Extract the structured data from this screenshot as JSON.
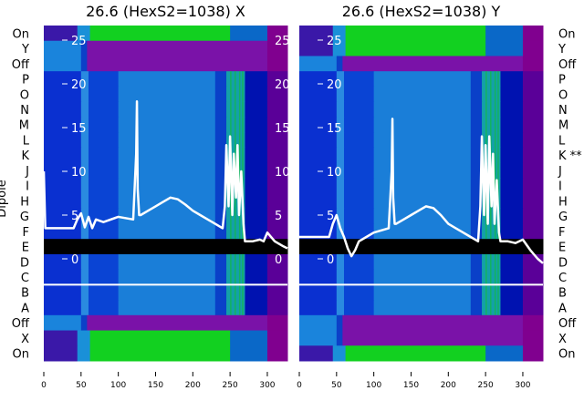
{
  "chart_data": [
    {
      "type": "heatmap",
      "title": "26.6 (HexS2=1038) X",
      "ylabel": "Dipole",
      "row_labels": [
        "On",
        "Y",
        "Off",
        "P",
        "O",
        "N",
        "M",
        "L",
        "K",
        "J",
        "I",
        "H",
        "G",
        "F",
        "E",
        "D",
        "C",
        "B",
        "A",
        "Off",
        "X",
        "On"
      ],
      "row_labels_side": "left",
      "xlim": [
        0,
        327
      ],
      "xticks": [
        0,
        50,
        100,
        150,
        200,
        250,
        300
      ],
      "inner_ylim": [
        -1.5,
        26.7
      ],
      "inner_yticks": [
        0,
        5,
        10,
        15,
        20,
        25
      ],
      "row_profiles": [
        "on",
        "off",
        "off",
        "blue",
        "blue",
        "blue",
        "blue",
        "blue",
        "blue",
        "blue",
        "blue",
        "blue",
        "blue",
        "blue",
        "black",
        "blue",
        "blue",
        "blue",
        "blue",
        "off",
        "on",
        "on"
      ],
      "line": {
        "x": [
          0,
          2,
          10,
          40,
          45,
          50,
          55,
          60,
          65,
          70,
          80,
          100,
          120,
          124,
          125,
          126,
          128,
          130,
          140,
          150,
          160,
          170,
          180,
          190,
          200,
          210,
          220,
          230,
          240,
          243,
          245,
          248,
          250,
          253,
          255,
          258,
          260,
          262,
          265,
          268,
          270,
          280,
          290,
          295,
          300,
          310,
          320,
          327
        ],
        "y": [
          10,
          3.5,
          3.5,
          3.5,
          4.5,
          5.2,
          3.6,
          4.8,
          3.5,
          4.5,
          4.2,
          4.8,
          4.5,
          12,
          18,
          8,
          5,
          5,
          5.5,
          6,
          6.5,
          7,
          6.8,
          6.2,
          5.5,
          5,
          4.5,
          4,
          3.5,
          6,
          13,
          6,
          14,
          5,
          12,
          7,
          13,
          5,
          10,
          4,
          2,
          2,
          2.2,
          2,
          3,
          2,
          1.5,
          1.2
        ]
      }
    },
    {
      "type": "heatmap",
      "title": "26.6 (HexS2=1038) Y",
      "row_labels": [
        "On",
        "Y",
        "Off",
        "P",
        "O",
        "N",
        "M",
        "L",
        "K **",
        "J",
        "I",
        "H",
        "G",
        "F",
        "E",
        "D",
        "C",
        "B",
        "A",
        "Off",
        "X",
        "On"
      ],
      "row_labels_side": "right",
      "xlim": [
        0,
        327
      ],
      "xticks": [
        0,
        50,
        100,
        150,
        200,
        250,
        300
      ],
      "inner_yticks": [
        0,
        5,
        10,
        15,
        20,
        25
      ],
      "row_profiles": [
        "on",
        "on",
        "off",
        "blue",
        "blue",
        "blue",
        "blue",
        "blue",
        "blue",
        "blue",
        "blue",
        "blue",
        "blue",
        "blue",
        "black",
        "blue",
        "blue",
        "blue",
        "blue",
        "off",
        "off",
        "on"
      ],
      "line": {
        "x": [
          0,
          10,
          40,
          45,
          50,
          55,
          60,
          65,
          70,
          75,
          80,
          90,
          100,
          120,
          124,
          125,
          126,
          128,
          130,
          140,
          150,
          160,
          170,
          180,
          190,
          200,
          210,
          220,
          230,
          240,
          243,
          245,
          248,
          250,
          253,
          255,
          258,
          260,
          262,
          265,
          268,
          270,
          280,
          290,
          300,
          310,
          320,
          327
        ],
        "y": [
          2.5,
          2.5,
          2.5,
          4,
          5,
          3.5,
          2.5,
          1.2,
          0.3,
          1,
          2,
          2.5,
          3,
          3.5,
          10,
          16,
          7,
          4,
          4,
          4.5,
          5,
          5.5,
          6,
          5.8,
          5,
          4,
          3.5,
          3,
          2.5,
          2,
          6,
          14,
          5,
          13,
          4,
          14,
          6,
          12,
          4,
          9,
          3,
          2,
          2,
          1.8,
          2.2,
          1,
          0,
          -0.5
        ]
      }
    }
  ],
  "colors": {
    "on": [
      [
        0,
        45,
        "#3a18a8"
      ],
      [
        45,
        62,
        "#1a90d8"
      ],
      [
        62,
        250,
        "#12d020"
      ],
      [
        250,
        300,
        "#0a68c8"
      ],
      [
        300,
        327,
        "#80008f"
      ]
    ],
    "off": [
      [
        0,
        50,
        "#1a84dc"
      ],
      [
        50,
        58,
        "#0c40c8"
      ],
      [
        58,
        300,
        "#7a12a8"
      ],
      [
        300,
        327,
        "#80008f"
      ]
    ],
    "blue": [
      [
        0,
        50,
        "#0a30d0"
      ],
      [
        50,
        60,
        "#2a8ae0"
      ],
      [
        60,
        100,
        "#0a44d4"
      ],
      [
        100,
        230,
        "#1a7ed8"
      ],
      [
        230,
        245,
        "#0a40c8"
      ],
      [
        245,
        270,
        "#14a0a8"
      ],
      [
        270,
        300,
        "#0012b0"
      ],
      [
        300,
        327,
        "#5a0098"
      ]
    ],
    "black": [
      [
        0,
        327,
        "#000000"
      ]
    ]
  }
}
